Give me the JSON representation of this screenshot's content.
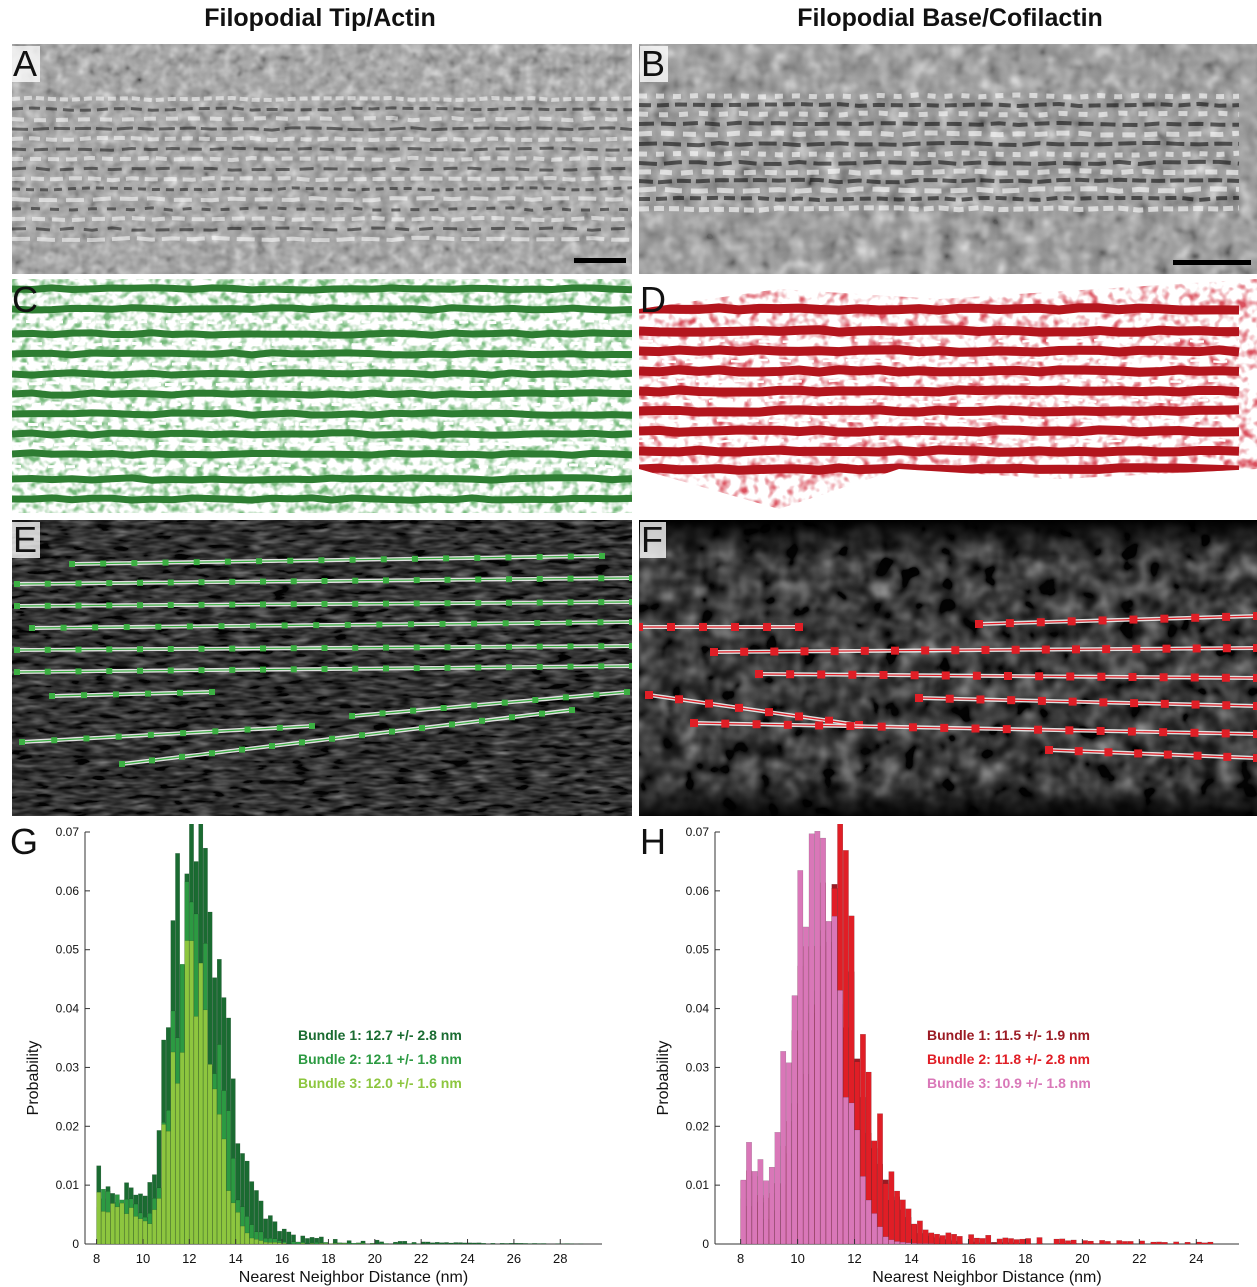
{
  "titles": {
    "left": "Filopodial Tip/Actin",
    "right": "Filopodial Base/Cofilactin"
  },
  "panels": {
    "A": {
      "label": "A",
      "content": "grayscale tomogram slice, filament bundle",
      "scale_bar": true
    },
    "B": {
      "label": "B",
      "content": "grayscale tomogram slice, filament bundle",
      "scale_bar": true
    },
    "C": {
      "label": "C",
      "content": "green segmented actin filaments",
      "color": "#2e7d32"
    },
    "D": {
      "label": "D",
      "content": "red segmented cofilactin filaments",
      "color": "#b3151d"
    },
    "E": {
      "label": "E",
      "content": "traced filaments with green markers",
      "marker_color": "#3cb043"
    },
    "F": {
      "label": "F",
      "content": "traced filaments with red markers",
      "marker_color": "#e01e26"
    }
  },
  "chart_data": [
    {
      "label": "G",
      "type": "bar",
      "xlabel": "Nearest Neighbor Distance (nm)",
      "ylabel": "Probability",
      "xlim": [
        7.5,
        29.8
      ],
      "ylim": [
        0,
        0.07
      ],
      "xticks": [
        8,
        10,
        12,
        14,
        16,
        18,
        20,
        22,
        24,
        26,
        28
      ],
      "yticks": [
        0,
        0.01,
        0.02,
        0.03,
        0.04,
        0.05,
        0.06,
        0.07
      ],
      "ytick_labels": [
        "0",
        "0.01",
        "0.02",
        "0.03",
        "0.04",
        "0.05",
        "0.06",
        "0.07"
      ],
      "bin_width": 0.2,
      "series": [
        {
          "name": "Bundle 1: 12.7 +/- 2.8 nm",
          "color": "#1a6b31",
          "peak": 12.0,
          "peak_value": 0.064,
          "spread_left": 0.85,
          "spread_right": 1.35,
          "tail": 0.004,
          "tail_decay": 4.0,
          "baseline_start": 0.008,
          "x_min": 8.0,
          "x_max": 28.8
        },
        {
          "name": "Bundle 2: 12.1 +/- 1.8 nm",
          "color": "#2c9a42",
          "peak": 12.1,
          "peak_value": 0.053,
          "spread_left": 0.8,
          "spread_right": 1.05,
          "tail": 0.002,
          "tail_decay": 3.0,
          "baseline_start": 0.005,
          "x_min": 8.0,
          "x_max": 22.0
        },
        {
          "name": "Bundle 3: 12.0 +/- 1.6 nm",
          "color": "#8dc63f",
          "peak": 12.0,
          "peak_value": 0.047,
          "spread_left": 0.75,
          "spread_right": 0.95,
          "tail": 0.001,
          "tail_decay": 2.5,
          "baseline_start": 0.004,
          "x_min": 8.0,
          "x_max": 20.0
        }
      ],
      "legend_position": "right"
    },
    {
      "label": "H",
      "type": "bar",
      "xlabel": "Nearest Neighbor Distance (nm)",
      "ylabel": "Probability",
      "xlim": [
        7.1,
        25.5
      ],
      "ylim": [
        0,
        0.07
      ],
      "xticks": [
        8,
        10,
        12,
        14,
        16,
        18,
        20,
        22,
        24
      ],
      "yticks": [
        0,
        0.01,
        0.02,
        0.03,
        0.04,
        0.05,
        0.06,
        0.07
      ],
      "ytick_labels": [
        "0",
        "0.01",
        "0.02",
        "0.03",
        "0.04",
        "0.05",
        "0.06",
        "0.07"
      ],
      "bin_width": 0.2,
      "series": [
        {
          "name": "Bundle 1: 11.5 +/- 1.9 nm",
          "color": "#9b1b24",
          "peak": 11.1,
          "peak_value": 0.048,
          "spread_left": 0.9,
          "spread_right": 1.2,
          "tail": 0.002,
          "tail_decay": 3.0,
          "baseline_start": 0.004,
          "x_min": 8.0,
          "x_max": 21.0
        },
        {
          "name": "Bundle 2: 11.8 +/- 2.8 nm",
          "color": "#e01e26",
          "peak": 10.9,
          "peak_value": 0.062,
          "spread_left": 0.85,
          "spread_right": 1.2,
          "tail": 0.004,
          "tail_decay": 5.0,
          "baseline_start": 0.008,
          "x_min": 8.0,
          "x_max": 24.4
        },
        {
          "name": "Bundle 3: 10.9 +/- 1.8 nm",
          "color": "#d977b8",
          "peak": 10.6,
          "peak_value": 0.063,
          "spread_left": 0.85,
          "spread_right": 0.9,
          "tail": 0.0005,
          "tail_decay": 2.0,
          "baseline_start": 0.012,
          "x_min": 8.0,
          "x_max": 16.0
        }
      ],
      "legend_position": "right"
    }
  ]
}
